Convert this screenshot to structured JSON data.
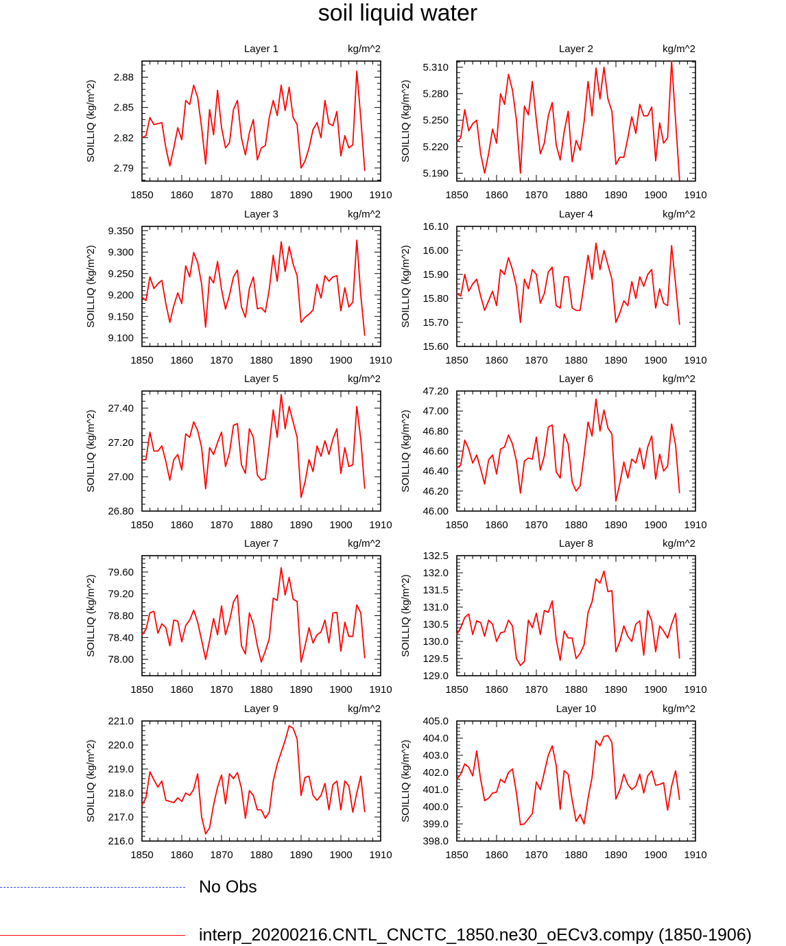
{
  "title": "soil liquid water",
  "legend": {
    "obs_label": "No Obs",
    "model_label": "interp_20200216.CNTL_CNCTC_1850.ne30_oECv3.compy (1850-1906)",
    "obs_color": "#3344ff",
    "model_color": "#ff0000"
  },
  "chart_data": [
    {
      "type": "line",
      "title": "Layer 1",
      "units": "kg/m^2",
      "ylabel": "SOILLIQ  (kg/m^2)",
      "xlim": [
        1850,
        1910
      ],
      "ylim": [
        2.777,
        2.896
      ],
      "xticks": [
        1850,
        1860,
        1870,
        1880,
        1890,
        1900,
        1910
      ],
      "yticks": [
        2.79,
        2.82,
        2.85,
        2.88
      ],
      "ytick_decimals": 2,
      "x_start": 1850,
      "series": [
        {
          "color": "#ff0000",
          "values": [
            2.82,
            2.822,
            2.84,
            2.833,
            2.834,
            2.835,
            2.81,
            2.792,
            2.81,
            2.83,
            2.818,
            2.857,
            2.853,
            2.872,
            2.86,
            2.83,
            2.794,
            2.848,
            2.823,
            2.867,
            2.83,
            2.81,
            2.815,
            2.848,
            2.857,
            2.82,
            2.803,
            2.825,
            2.838,
            2.798,
            2.81,
            2.812,
            2.84,
            2.857,
            2.842,
            2.872,
            2.847,
            2.87,
            2.84,
            2.833,
            2.79,
            2.797,
            2.81,
            2.828,
            2.835,
            2.82,
            2.857,
            2.834,
            2.832,
            2.846,
            2.802,
            2.822,
            2.81,
            2.813,
            2.886,
            2.84,
            2.787
          ]
        }
      ]
    },
    {
      "type": "line",
      "title": "Layer 2",
      "units": "kg/m^2",
      "ylabel": "SOILLIQ  (kg/m^2)",
      "xlim": [
        1850,
        1910
      ],
      "ylim": [
        5.181,
        5.317
      ],
      "xticks": [
        1850,
        1860,
        1870,
        1880,
        1890,
        1900,
        1910
      ],
      "yticks": [
        5.19,
        5.22,
        5.25,
        5.28,
        5.31
      ],
      "ytick_decimals": 3,
      "x_start": 1850,
      "series": [
        {
          "color": "#ff0000",
          "values": [
            5.226,
            5.23,
            5.262,
            5.238,
            5.246,
            5.25,
            5.212,
            5.19,
            5.212,
            5.24,
            5.224,
            5.28,
            5.268,
            5.302,
            5.284,
            5.25,
            5.19,
            5.266,
            5.256,
            5.294,
            5.25,
            5.212,
            5.224,
            5.255,
            5.27,
            5.222,
            5.205,
            5.237,
            5.26,
            5.203,
            5.227,
            5.216,
            5.248,
            5.294,
            5.255,
            5.309,
            5.274,
            5.31,
            5.274,
            5.26,
            5.2,
            5.208,
            5.208,
            5.23,
            5.254,
            5.235,
            5.268,
            5.255,
            5.255,
            5.265,
            5.204,
            5.247,
            5.224,
            5.23,
            5.317,
            5.25,
            5.182
          ]
        }
      ]
    },
    {
      "type": "line",
      "title": "Layer 3",
      "units": "kg/m^2",
      "ylabel": "SOILLIQ  (kg/m^2)",
      "xlim": [
        1850,
        1910
      ],
      "ylim": [
        9.08,
        9.36
      ],
      "xticks": [
        1850,
        1860,
        1870,
        1880,
        1890,
        1900,
        1910
      ],
      "yticks": [
        9.1,
        9.15,
        9.2,
        9.25,
        9.3,
        9.35
      ],
      "ytick_decimals": 3,
      "x_start": 1850,
      "series": [
        {
          "color": "#ff0000",
          "values": [
            9.195,
            9.187,
            9.242,
            9.215,
            9.226,
            9.234,
            9.18,
            9.136,
            9.175,
            9.205,
            9.18,
            9.268,
            9.242,
            9.299,
            9.276,
            9.225,
            9.125,
            9.243,
            9.228,
            9.278,
            9.213,
            9.167,
            9.2,
            9.242,
            9.258,
            9.172,
            9.148,
            9.215,
            9.242,
            9.168,
            9.17,
            9.16,
            9.213,
            9.293,
            9.232,
            9.324,
            9.255,
            9.313,
            9.272,
            9.245,
            9.136,
            9.148,
            9.155,
            9.165,
            9.225,
            9.193,
            9.245,
            9.232,
            9.242,
            9.245,
            9.163,
            9.217,
            9.172,
            9.183,
            9.328,
            9.2,
            9.105
          ]
        }
      ]
    },
    {
      "type": "line",
      "title": "Layer 4",
      "units": "kg/m^2",
      "ylabel": "SOILLIQ  (kg/m^2)",
      "xlim": [
        1850,
        1910
      ],
      "ylim": [
        15.6,
        16.1
      ],
      "xticks": [
        1850,
        1860,
        1870,
        1880,
        1890,
        1900,
        1910
      ],
      "yticks": [
        15.6,
        15.7,
        15.8,
        15.9,
        16.0,
        16.1
      ],
      "ytick_decimals": 2,
      "x_start": 1850,
      "series": [
        {
          "color": "#ff0000",
          "values": [
            15.82,
            15.81,
            15.9,
            15.83,
            15.86,
            15.88,
            15.81,
            15.75,
            15.79,
            15.83,
            15.77,
            15.92,
            15.9,
            15.97,
            15.92,
            15.85,
            15.7,
            15.88,
            15.84,
            15.92,
            15.9,
            15.78,
            15.82,
            15.91,
            15.93,
            15.77,
            15.76,
            15.89,
            15.89,
            15.76,
            15.75,
            15.75,
            15.86,
            15.98,
            15.88,
            16.03,
            15.92,
            16.0,
            15.94,
            15.88,
            15.7,
            15.74,
            15.79,
            15.77,
            15.87,
            15.8,
            15.89,
            15.85,
            15.9,
            15.92,
            15.76,
            15.84,
            15.78,
            15.77,
            16.02,
            15.86,
            15.69
          ]
        }
      ]
    },
    {
      "type": "line",
      "title": "Layer 5",
      "units": "kg/m^2",
      "ylabel": "SOILLIQ  (kg/m^2)",
      "xlim": [
        1850,
        1910
      ],
      "ylim": [
        26.8,
        27.5
      ],
      "xticks": [
        1850,
        1860,
        1870,
        1880,
        1890,
        1900,
        1910
      ],
      "yticks": [
        26.8,
        27.0,
        27.2,
        27.4
      ],
      "ytick_decimals": 2,
      "x_start": 1850,
      "series": [
        {
          "color": "#ff0000",
          "values": [
            27.1,
            27.1,
            27.26,
            27.15,
            27.15,
            27.18,
            27.09,
            26.98,
            27.1,
            27.13,
            27.04,
            27.25,
            27.23,
            27.32,
            27.27,
            27.17,
            26.93,
            27.17,
            27.13,
            27.2,
            27.26,
            27.06,
            27.14,
            27.3,
            27.31,
            27.07,
            27.02,
            27.28,
            27.23,
            27.01,
            26.98,
            26.99,
            27.18,
            27.39,
            27.23,
            27.48,
            27.28,
            27.41,
            27.32,
            27.23,
            26.88,
            26.97,
            27.1,
            27.03,
            27.18,
            27.12,
            27.21,
            27.13,
            27.22,
            27.28,
            27.02,
            27.17,
            27.06,
            27.07,
            27.41,
            27.22,
            26.93
          ]
        }
      ]
    },
    {
      "type": "line",
      "title": "Layer 6",
      "units": "kg/m^2",
      "ylabel": "SOILLIQ  (kg/m^2)",
      "xlim": [
        1850,
        1910
      ],
      "ylim": [
        46.0,
        47.2
      ],
      "xticks": [
        1850,
        1860,
        1870,
        1880,
        1890,
        1900,
        1910
      ],
      "yticks": [
        46.0,
        46.2,
        46.4,
        46.6,
        46.8,
        47.0,
        47.2
      ],
      "ytick_decimals": 2,
      "x_start": 1850,
      "series": [
        {
          "color": "#ff0000",
          "values": [
            46.43,
            46.46,
            46.71,
            46.62,
            46.48,
            46.56,
            46.42,
            46.27,
            46.51,
            46.56,
            46.37,
            46.62,
            46.64,
            46.76,
            46.67,
            46.5,
            46.18,
            46.5,
            46.53,
            46.52,
            46.74,
            46.41,
            46.55,
            46.84,
            46.86,
            46.39,
            46.33,
            46.77,
            46.67,
            46.29,
            46.2,
            46.25,
            46.55,
            46.89,
            46.75,
            47.12,
            46.8,
            47.01,
            46.83,
            46.77,
            46.1,
            46.28,
            46.49,
            46.33,
            46.52,
            46.48,
            46.63,
            46.42,
            46.64,
            46.75,
            46.32,
            46.57,
            46.4,
            46.45,
            46.87,
            46.66,
            46.18
          ]
        }
      ]
    },
    {
      "type": "line",
      "title": "Layer 7",
      "units": "kg/m^2",
      "ylabel": "SOILLIQ  (kg/m^2)",
      "xlim": [
        1850,
        1910
      ],
      "ylim": [
        77.7,
        79.9
      ],
      "xticks": [
        1850,
        1860,
        1870,
        1880,
        1890,
        1900,
        1910
      ],
      "yticks": [
        78.0,
        78.4,
        78.8,
        79.2,
        79.6
      ],
      "ytick_decimals": 2,
      "x_start": 1850,
      "series": [
        {
          "color": "#ff0000",
          "values": [
            78.45,
            78.55,
            78.85,
            78.88,
            78.48,
            78.65,
            78.58,
            78.25,
            78.72,
            78.7,
            78.32,
            78.62,
            78.72,
            78.9,
            78.68,
            78.35,
            78.0,
            78.35,
            78.75,
            78.45,
            78.98,
            78.45,
            78.7,
            79.05,
            79.18,
            78.25,
            78.1,
            78.85,
            78.65,
            78.25,
            77.95,
            78.15,
            78.38,
            79.12,
            79.08,
            79.68,
            79.18,
            79.5,
            79.1,
            79.06,
            77.95,
            78.25,
            78.58,
            78.3,
            78.45,
            78.5,
            78.72,
            78.3,
            78.85,
            78.86,
            78.15,
            78.68,
            78.42,
            78.42,
            79.0,
            78.85,
            78.02
          ]
        }
      ]
    },
    {
      "type": "line",
      "title": "Layer 8",
      "units": "kg/m^2",
      "ylabel": "SOILLIQ  (kg/m^2)",
      "xlim": [
        1850,
        1910
      ],
      "ylim": [
        129.0,
        132.5
      ],
      "xticks": [
        1850,
        1860,
        1870,
        1880,
        1890,
        1900,
        1910
      ],
      "yticks": [
        129.0,
        129.5,
        130.0,
        130.5,
        131.0,
        131.5,
        132.0,
        132.5
      ],
      "ytick_decimals": 1,
      "x_start": 1850,
      "series": [
        {
          "color": "#ff0000",
          "values": [
            130.2,
            130.4,
            130.7,
            130.8,
            130.2,
            130.6,
            130.55,
            130.15,
            130.62,
            130.5,
            130.0,
            130.25,
            130.28,
            130.62,
            130.45,
            129.5,
            129.3,
            129.42,
            130.62,
            130.4,
            130.82,
            130.2,
            130.9,
            130.85,
            131.18,
            130.05,
            129.45,
            130.3,
            130.1,
            130.1,
            129.5,
            129.65,
            129.9,
            130.85,
            131.15,
            131.82,
            131.7,
            132.05,
            131.45,
            131.48,
            129.7,
            130.0,
            130.45,
            130.15,
            130.0,
            130.5,
            130.6,
            129.6,
            130.9,
            130.6,
            129.7,
            130.45,
            130.3,
            130.1,
            130.5,
            130.82,
            129.5
          ]
        }
      ]
    },
    {
      "type": "line",
      "title": "Layer 9",
      "units": "kg/m^2",
      "ylabel": "SOILLIQ  (kg/m^2)",
      "xlim": [
        1850,
        1910
      ],
      "ylim": [
        216.0,
        221.0
      ],
      "xticks": [
        1850,
        1860,
        1870,
        1880,
        1890,
        1900,
        1910
      ],
      "yticks": [
        216.0,
        217.0,
        218.0,
        219.0,
        220.0,
        221.0
      ],
      "ytick_decimals": 1,
      "x_start": 1850,
      "series": [
        {
          "color": "#ff0000",
          "values": [
            217.5,
            217.8,
            218.88,
            218.55,
            218.25,
            218.5,
            217.7,
            217.65,
            217.6,
            217.8,
            217.65,
            218.0,
            217.9,
            218.15,
            218.8,
            217.0,
            216.3,
            216.55,
            217.5,
            218.25,
            218.75,
            217.55,
            218.8,
            218.6,
            218.85,
            218.2,
            216.95,
            218.1,
            217.9,
            217.3,
            217.3,
            216.95,
            217.2,
            218.5,
            219.2,
            219.7,
            220.2,
            220.8,
            220.7,
            220.25,
            217.9,
            218.65,
            218.7,
            217.9,
            217.7,
            217.9,
            218.4,
            217.3,
            218.35,
            218.5,
            217.3,
            218.5,
            218.3,
            217.2,
            218.0,
            218.7,
            217.2
          ]
        }
      ]
    },
    {
      "type": "line",
      "title": "Layer 10",
      "units": "kg/m^2",
      "ylabel": "SOILLIQ  (kg/m^2)",
      "xlim": [
        1850,
        1910
      ],
      "ylim": [
        398.0,
        405.0
      ],
      "xticks": [
        1850,
        1860,
        1870,
        1880,
        1890,
        1900,
        1910
      ],
      "yticks": [
        398.0,
        399.0,
        400.0,
        401.0,
        402.0,
        403.0,
        404.0,
        405.0
      ],
      "ytick_decimals": 1,
      "x_start": 1850,
      "series": [
        {
          "color": "#ff0000",
          "values": [
            401.6,
            401.9,
            402.5,
            402.3,
            401.8,
            403.25,
            401.6,
            400.35,
            400.5,
            400.8,
            400.85,
            401.6,
            401.4,
            402.0,
            402.2,
            400.8,
            398.95,
            399.0,
            399.3,
            399.6,
            401.45,
            401.0,
            402.0,
            403.0,
            403.55,
            402.4,
            399.85,
            402.1,
            401.9,
            400.4,
            399.15,
            399.55,
            399.0,
            400.5,
            401.7,
            403.85,
            403.55,
            404.1,
            404.15,
            403.75,
            400.45,
            401.0,
            401.9,
            401.3,
            401.0,
            401.2,
            401.9,
            400.8,
            401.8,
            402.1,
            401.25,
            401.3,
            401.4,
            399.8,
            401.2,
            402.1,
            400.4
          ]
        }
      ]
    }
  ]
}
